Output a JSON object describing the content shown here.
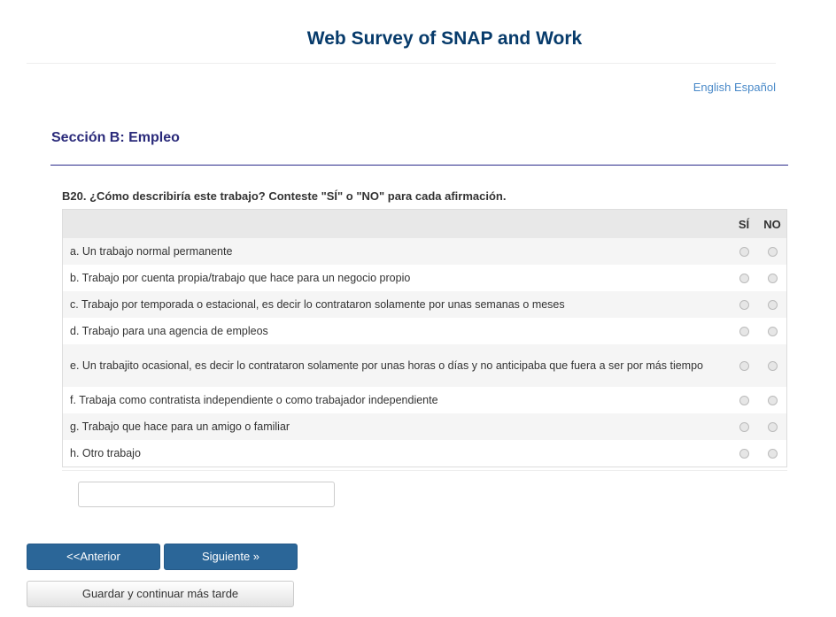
{
  "header": {
    "title": "Web Survey of SNAP and Work"
  },
  "language": {
    "english": "English",
    "spanish": "Español"
  },
  "section": {
    "title": "Sección B: Empleo"
  },
  "question": {
    "text": "B20. ¿Cómo describiría este trabajo? Conteste \"SÍ\" o \"NO\" para cada afirmación.",
    "columns": [
      "SÍ",
      "NO"
    ],
    "rows": [
      "a. Un trabajo normal permanente",
      "b. Trabajo por cuenta propia/trabajo que hace para un negocio propio",
      "c. Trabajo por temporada o estacional, es decir lo contrataron solamente por unas semanas o meses",
      "d. Trabajo para una agencia de empleos",
      "e. Un trabajito ocasional, es decir lo contrataron solamente por unas horas o días y no anticipaba que fuera a ser por más tiempo",
      "f. Trabaja como contratista independiente o como trabajador independiente",
      "g. Trabajo que hace para un amigo o familiar",
      "h. Otro trabajo"
    ]
  },
  "other_input": {
    "value": ""
  },
  "buttons": {
    "prev": "<<Anterior",
    "next": "Siguiente »",
    "save": "Guardar y continuar más tarde"
  }
}
